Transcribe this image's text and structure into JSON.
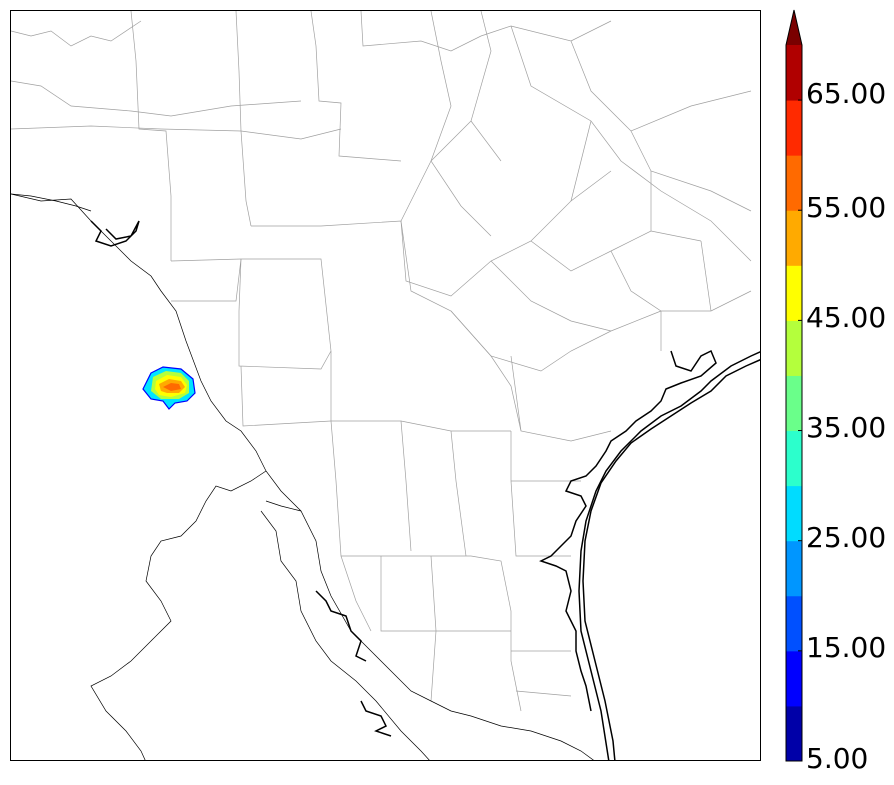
{
  "map": {
    "type": "radar-reflectivity-map",
    "echo": {
      "max_color": "#ff6a00",
      "mid_color": "#ffff00",
      "outer_color": "#00e5ff",
      "edge_color": "#0000ff"
    }
  },
  "colorbar": {
    "levels": [
      5,
      10,
      15,
      20,
      25,
      30,
      35,
      40,
      45,
      50,
      55,
      60,
      65,
      70
    ],
    "colors": [
      "#0000a8",
      "#0000ff",
      "#0050ff",
      "#0096ff",
      "#00dcff",
      "#2cffcc",
      "#6aff8a",
      "#b4ff3c",
      "#ffff00",
      "#ffaa00",
      "#ff6a00",
      "#ff2a00",
      "#b00000"
    ],
    "extend_color": "#7a0000",
    "tick_labels": [
      "65.00",
      "55.00",
      "45.00",
      "35.00",
      "25.00",
      "15.00",
      "5.00"
    ]
  }
}
